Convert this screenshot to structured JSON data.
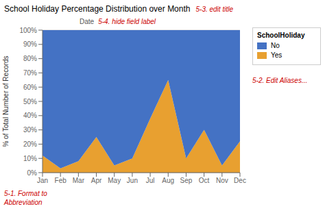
{
  "chart_data": {
    "type": "area",
    "title": "School Holiday Percentage Distribution over Month",
    "subtitle": "Date",
    "y_label": "% of Total Number of Records",
    "legend_title": "SchoolHoliday",
    "annotations": [
      {
        "text": "5-3. edit title",
        "color": "#cc0000"
      },
      {
        "text": "5-4. hide field label",
        "color": "#cc0000"
      },
      {
        "text": "5-2. Edit Aliases...",
        "color": "#cc0000"
      },
      {
        "text": "5-1. Format to\nAbbreviation",
        "color": "#cc0000"
      }
    ],
    "categories": [
      "Jan",
      "Feb",
      "Mar",
      "Apr",
      "May",
      "Jun",
      "Jul",
      "Aug",
      "Sep",
      "Oct",
      "Nov",
      "Dec"
    ],
    "series": [
      {
        "name": "Yes",
        "color": "#e8a030",
        "values": [
          12,
          3,
          8,
          25,
          5,
          10,
          38,
          65,
          10,
          30,
          5,
          22
        ]
      },
      {
        "name": "No",
        "color": "#4472c4",
        "values": [
          88,
          97,
          92,
          75,
          95,
          90,
          62,
          35,
          90,
          70,
          95,
          78
        ]
      }
    ],
    "stacked": true,
    "ylim": [
      0,
      100
    ],
    "yticks": [
      {
        "value": 0,
        "label": "0%"
      },
      {
        "value": 10,
        "label": "10%"
      },
      {
        "value": 20,
        "label": "20%"
      },
      {
        "value": 30,
        "label": "30%"
      },
      {
        "value": 40,
        "label": "40%"
      },
      {
        "value": 50,
        "label": "50%"
      },
      {
        "value": 60,
        "label": "60%"
      },
      {
        "value": 70,
        "label": "70%"
      },
      {
        "value": 80,
        "label": "80%"
      },
      {
        "value": 90,
        "label": "90%"
      },
      {
        "value": 100,
        "label": "100%"
      }
    ],
    "grid": true
  }
}
